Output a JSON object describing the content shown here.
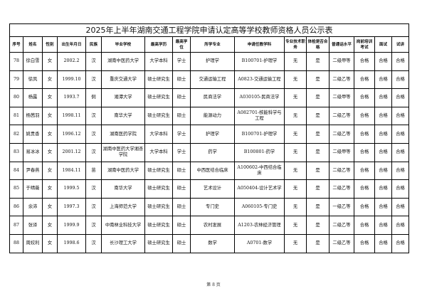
{
  "title": "2025年上半年湖南交通工程学院申请认定高等学校教师资格人员公示表",
  "headers": [
    "序号",
    "姓名",
    "性别",
    "出生年月日",
    "民族",
    "毕业学校",
    "最高学历",
    "最高学位",
    "所学专业",
    "申请任教学科",
    "专业技术职务",
    "体检是否合格",
    "普通话水平",
    "岗前培训考试",
    "面试",
    "试讲"
  ],
  "rows": [
    [
      "78",
      "徐白雪",
      "女",
      "2002.2",
      "汉",
      "湖南中医药大学",
      "大学本科",
      "学士",
      "护理学",
      "B100701-护理学",
      "无",
      "是",
      "二级甲等",
      "合格",
      "合格",
      "合格"
    ],
    [
      "79",
      "徐凤",
      "女",
      "1999.10",
      "汉",
      "重庆交通大学",
      "硕士研究生",
      "硕士",
      "交通运输工程",
      "A0823-交通运输工程",
      "无",
      "是",
      "二级乙等",
      "合格",
      "合格",
      "合格"
    ],
    [
      "80",
      "杨露",
      "女",
      "1993.7",
      "侗",
      "湘潭大学",
      "硕士研究生",
      "硕士",
      "民商法学",
      "A030105-民商法学",
      "无",
      "是",
      "二级甲等",
      "合格",
      "合格",
      "合格"
    ],
    [
      "81",
      "杨茜羽",
      "女",
      "1998.11",
      "汉",
      "南华大学",
      "硕士研究生",
      "硕士",
      "能源动力",
      "A082701-核能科学与工程",
      "无",
      "是",
      "二级乙等",
      "合格",
      "合格",
      "合格"
    ],
    [
      "82",
      "姚贵香",
      "女",
      "1996.12",
      "汉",
      "湖南医药学院",
      "大学本科",
      "学士",
      "护理学",
      "B100701-护理学",
      "无",
      "是",
      "二级乙等",
      "合格",
      "合格",
      "合格"
    ],
    [
      "83",
      "易冰冰",
      "女",
      "2001.12",
      "汉",
      "湖南中医药大学湘杏学院",
      "大学本科",
      "学士",
      "药学",
      "B100801-药学",
      "无",
      "是",
      "二级甲等",
      "合格",
      "合格",
      "合格"
    ],
    [
      "84",
      "尹春燕",
      "女",
      "1984.11",
      "苗",
      "湖南中医药大学",
      "硕士研究生",
      "硕士",
      "中西医结合临床",
      "A100602-中西结合临床",
      "无",
      "是",
      "二级乙等",
      "合格",
      "合格",
      "合格"
    ],
    [
      "85",
      "于晴薇",
      "女",
      "1999.5",
      "汉",
      "南华大学",
      "硕士研究生",
      "硕士",
      "艺术设计",
      "A050404-设计艺术学",
      "无",
      "是",
      "二级乙等",
      "合格",
      "合格",
      "合格"
    ],
    [
      "86",
      "余沛",
      "女",
      "1997.3",
      "汉",
      "上海师范大学",
      "硕士研究生",
      "硕士",
      "专门史",
      "A060105-专门史",
      "无",
      "是",
      "一级乙等",
      "合格",
      "合格",
      "合格"
    ],
    [
      "87",
      "张译",
      "女",
      "1999.9",
      "汉",
      "中南林业科技大学",
      "硕士研究生",
      "硕士",
      "农村发展",
      "A1203-农林经济管理",
      "无",
      "是",
      "二级乙等",
      "合格",
      "合格",
      "合格"
    ],
    [
      "88",
      "周姣利",
      "女",
      "1998.6",
      "汉",
      "长沙理工大学",
      "硕士研究生",
      "硕士",
      "数学",
      "A0701-数学",
      "无",
      "是",
      "二级乙等",
      "合格",
      "合格",
      "合格"
    ]
  ],
  "footer": "第 8 页"
}
